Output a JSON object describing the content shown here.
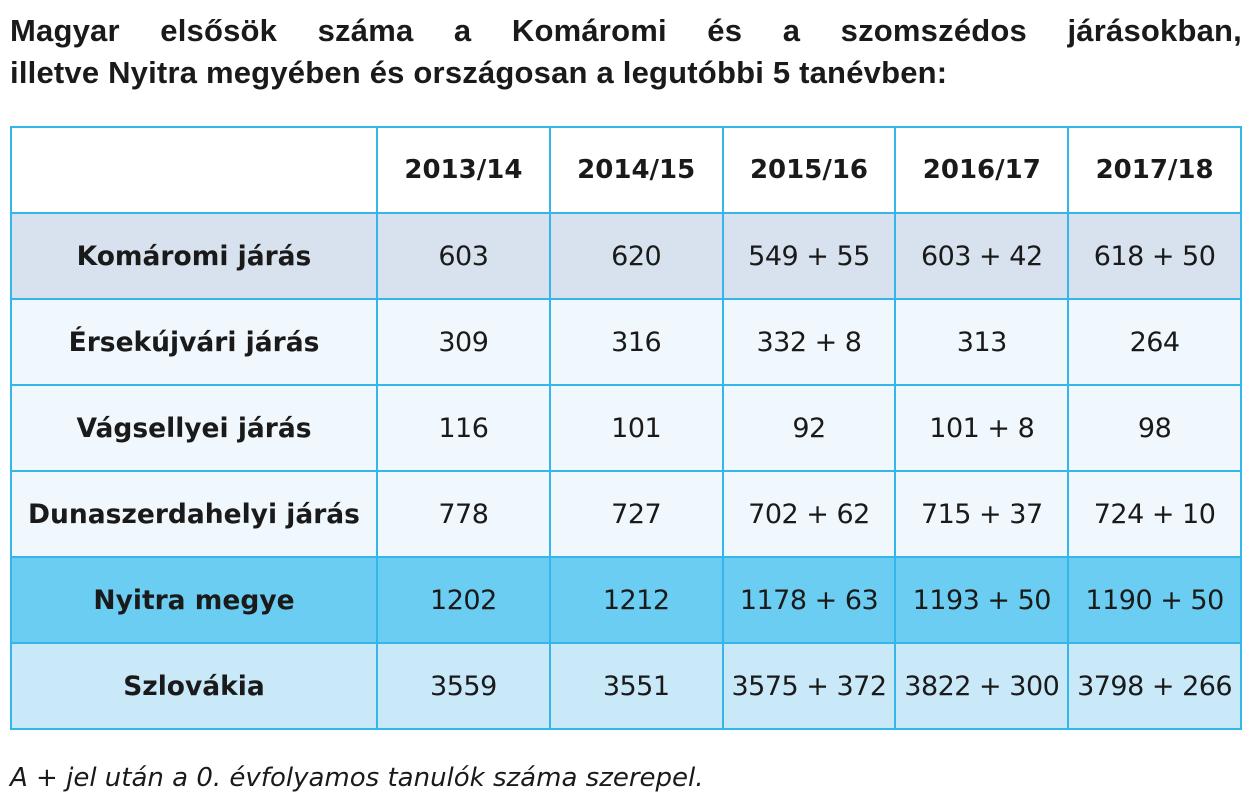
{
  "title": {
    "line1": "Magyar elsősök száma a Komáromi és a szomszédos járásokban,",
    "line2": "illetve Nyitra megyében és országosan a legutóbbi 5 tanévben:"
  },
  "table": {
    "corner": "",
    "columns": [
      "2013/14",
      "2014/15",
      "2015/16",
      "2016/17",
      "2017/18"
    ],
    "rows": [
      {
        "label": "Komáromi járás",
        "values": [
          "603",
          "620",
          "549 + 55",
          "603 + 42",
          "618 + 50"
        ]
      },
      {
        "label": "Érsekújvári járás",
        "values": [
          "309",
          "316",
          "332 + 8",
          "313",
          "264"
        ]
      },
      {
        "label": "Vágsellyei járás",
        "values": [
          "116",
          "101",
          "92",
          "101 + 8",
          "98"
        ]
      },
      {
        "label": "Dunaszerdahelyi járás",
        "values": [
          "778",
          "727",
          "702 + 62",
          "715 + 37",
          "724 + 10"
        ]
      },
      {
        "label": "Nyitra megye",
        "values": [
          "1202",
          "1212",
          "1178 + 63",
          "1193 + 50",
          "1190 + 50"
        ]
      },
      {
        "label": "Szlovákia",
        "values": [
          "3559",
          "3551",
          "3575 + 372",
          "3822 + 300",
          "3798 + 266"
        ]
      }
    ]
  },
  "footnote": "A + jel után a 0. évfolyamos tanulók száma szerepel.",
  "colors": {
    "border": "#34b6ea",
    "row_komarom": "#d7e2ee",
    "row_light": "#f1f8fd",
    "row_nyitra": "#6bcdf1",
    "row_slovakia": "#c9e9f9"
  }
}
